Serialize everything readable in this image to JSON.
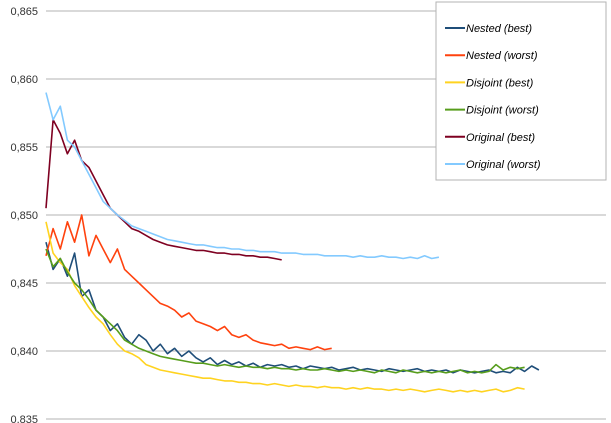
{
  "chart_data": {
    "type": "line",
    "title": "",
    "xlabel": "",
    "ylabel": "",
    "ylim": [
      0.835,
      0.865
    ],
    "yticks": [
      "0,835",
      "0,840",
      "0,845",
      "0,850",
      "0,855",
      "0,860",
      "0,865"
    ],
    "xlim": [
      0,
      280
    ],
    "grid": true,
    "legend_position": "top-right",
    "series": [
      {
        "name": "Nested (best)",
        "color": "#1f4e79",
        "x": [
          0,
          4,
          8,
          12,
          16,
          20,
          24,
          28,
          32,
          36,
          40,
          44,
          48,
          52,
          56,
          60,
          64,
          68,
          72,
          76,
          80,
          84,
          88,
          92,
          96,
          100,
          104,
          108,
          112,
          116,
          120,
          124,
          128,
          132,
          136,
          140,
          144,
          148,
          152,
          156,
          160,
          164,
          168,
          172,
          176,
          180,
          184,
          188,
          192,
          196,
          200,
          204,
          208,
          212,
          216,
          220,
          224,
          228,
          232,
          236,
          240,
          244,
          248,
          252,
          256,
          260,
          264,
          268,
          272,
          276
        ],
        "values": [
          0.848,
          0.846,
          0.8468,
          0.8455,
          0.8472,
          0.844,
          0.8445,
          0.843,
          0.8425,
          0.8415,
          0.842,
          0.841,
          0.8405,
          0.8412,
          0.8408,
          0.84,
          0.8405,
          0.8398,
          0.8402,
          0.8396,
          0.84,
          0.8395,
          0.8392,
          0.8395,
          0.839,
          0.8393,
          0.839,
          0.8392,
          0.8389,
          0.8391,
          0.8388,
          0.839,
          0.8389,
          0.839,
          0.8388,
          0.8389,
          0.8387,
          0.8389,
          0.8388,
          0.8387,
          0.8388,
          0.8386,
          0.8387,
          0.8388,
          0.8386,
          0.8387,
          0.8386,
          0.8385,
          0.8387,
          0.8386,
          0.8385,
          0.8386,
          0.8387,
          0.8385,
          0.8386,
          0.8385,
          0.8386,
          0.8384,
          0.8386,
          0.8385,
          0.8384,
          0.8385,
          0.8386,
          0.8384,
          0.8385,
          0.8384,
          0.8388,
          0.8385,
          0.8389,
          0.8386
        ]
      },
      {
        "name": "Nested (worst)",
        "color": "#ff420e",
        "x": [
          0,
          4,
          8,
          12,
          16,
          20,
          24,
          28,
          32,
          36,
          40,
          44,
          48,
          52,
          56,
          60,
          64,
          68,
          72,
          76,
          80,
          84,
          88,
          92,
          96,
          100,
          104,
          108,
          112,
          116,
          120,
          124,
          128,
          132,
          136,
          140,
          144,
          148,
          152,
          156,
          160
        ],
        "values": [
          0.847,
          0.849,
          0.8475,
          0.8495,
          0.848,
          0.85,
          0.847,
          0.8485,
          0.8475,
          0.8465,
          0.8475,
          0.846,
          0.8455,
          0.845,
          0.8445,
          0.844,
          0.8435,
          0.8433,
          0.843,
          0.8425,
          0.8428,
          0.8422,
          0.842,
          0.8418,
          0.8415,
          0.8418,
          0.8412,
          0.841,
          0.8412,
          0.8408,
          0.8406,
          0.8405,
          0.8404,
          0.8405,
          0.8402,
          0.8403,
          0.8402,
          0.8401,
          0.8403,
          0.8401,
          0.8402
        ]
      },
      {
        "name": "Disjoint (best)",
        "color": "#ffd320",
        "x": [
          0,
          4,
          8,
          12,
          16,
          20,
          24,
          28,
          32,
          36,
          40,
          44,
          48,
          52,
          56,
          60,
          64,
          68,
          72,
          76,
          80,
          84,
          88,
          92,
          96,
          100,
          104,
          108,
          112,
          116,
          120,
          124,
          128,
          132,
          136,
          140,
          144,
          148,
          152,
          156,
          160,
          164,
          168,
          172,
          176,
          180,
          184,
          188,
          192,
          196,
          200,
          204,
          208,
          212,
          216,
          220,
          224,
          228,
          232,
          236,
          240,
          244,
          248,
          252,
          256,
          260,
          264,
          268
        ],
        "values": [
          0.8495,
          0.8472,
          0.8465,
          0.846,
          0.8448,
          0.844,
          0.8432,
          0.8425,
          0.842,
          0.8412,
          0.8405,
          0.84,
          0.8398,
          0.8395,
          0.839,
          0.8388,
          0.8386,
          0.8385,
          0.8384,
          0.8383,
          0.8382,
          0.8381,
          0.838,
          0.838,
          0.8379,
          0.8378,
          0.8378,
          0.8377,
          0.8377,
          0.8376,
          0.8376,
          0.8375,
          0.8376,
          0.8375,
          0.8374,
          0.8375,
          0.8374,
          0.8374,
          0.8373,
          0.8374,
          0.8373,
          0.8373,
          0.8372,
          0.8373,
          0.8372,
          0.8373,
          0.8372,
          0.8372,
          0.8371,
          0.8372,
          0.8371,
          0.8372,
          0.8371,
          0.837,
          0.8371,
          0.8372,
          0.8371,
          0.837,
          0.8371,
          0.837,
          0.8371,
          0.837,
          0.8371,
          0.8372,
          0.837,
          0.8371,
          0.8373,
          0.8372
        ]
      },
      {
        "name": "Disjoint (worst)",
        "color": "#579d1c",
        "x": [
          0,
          4,
          8,
          12,
          16,
          20,
          24,
          28,
          32,
          36,
          40,
          44,
          48,
          52,
          56,
          60,
          64,
          68,
          72,
          76,
          80,
          84,
          88,
          92,
          96,
          100,
          104,
          108,
          112,
          116,
          120,
          124,
          128,
          132,
          136,
          140,
          144,
          148,
          152,
          156,
          160,
          164,
          168,
          172,
          176,
          180,
          184,
          188,
          192,
          196,
          200,
          204,
          208,
          212,
          216,
          220,
          224,
          228,
          232,
          236,
          240,
          244,
          248,
          252,
          256,
          260,
          264,
          268
        ],
        "values": [
          0.8475,
          0.8462,
          0.8468,
          0.8458,
          0.845,
          0.8445,
          0.8438,
          0.843,
          0.8425,
          0.842,
          0.8415,
          0.8408,
          0.8405,
          0.8402,
          0.84,
          0.8398,
          0.8396,
          0.8395,
          0.8394,
          0.8393,
          0.8392,
          0.8391,
          0.8391,
          0.839,
          0.8389,
          0.839,
          0.8389,
          0.8388,
          0.8389,
          0.8388,
          0.8388,
          0.8387,
          0.8388,
          0.8387,
          0.8387,
          0.8386,
          0.8387,
          0.8386,
          0.8386,
          0.8387,
          0.8386,
          0.8385,
          0.8386,
          0.8385,
          0.8386,
          0.8385,
          0.8384,
          0.8386,
          0.8385,
          0.8384,
          0.8386,
          0.8385,
          0.8384,
          0.8385,
          0.8384,
          0.8385,
          0.8384,
          0.8385,
          0.8386,
          0.8384,
          0.8385,
          0.8384,
          0.8385,
          0.839,
          0.8386,
          0.8388,
          0.8387,
          0.8388
        ]
      },
      {
        "name": "Original (best)",
        "color": "#7e0021",
        "x": [
          0,
          4,
          8,
          12,
          16,
          20,
          24,
          28,
          32,
          36,
          40,
          44,
          48,
          52,
          56,
          60,
          64,
          68,
          72,
          76,
          80,
          84,
          88,
          92,
          96,
          100,
          104,
          108,
          112,
          116,
          120,
          124,
          128,
          132
        ],
        "values": [
          0.8505,
          0.857,
          0.856,
          0.8545,
          0.8555,
          0.854,
          0.8535,
          0.8525,
          0.8515,
          0.8505,
          0.85,
          0.8495,
          0.849,
          0.8488,
          0.8485,
          0.8482,
          0.848,
          0.8478,
          0.8477,
          0.8476,
          0.8475,
          0.8474,
          0.8474,
          0.8473,
          0.8472,
          0.8472,
          0.8471,
          0.8471,
          0.847,
          0.847,
          0.8469,
          0.8469,
          0.8468,
          0.8467
        ]
      },
      {
        "name": "Original (worst)",
        "color": "#83caff",
        "x": [
          0,
          4,
          8,
          12,
          16,
          20,
          24,
          28,
          32,
          36,
          40,
          44,
          48,
          52,
          56,
          60,
          64,
          68,
          72,
          76,
          80,
          84,
          88,
          92,
          96,
          100,
          104,
          108,
          112,
          116,
          120,
          124,
          128,
          132,
          136,
          140,
          144,
          148,
          152,
          156,
          160,
          164,
          168,
          172,
          176,
          180,
          184,
          188,
          192,
          196,
          200,
          204,
          208,
          212,
          216,
          220
        ],
        "values": [
          0.859,
          0.857,
          0.858,
          0.8555,
          0.855,
          0.854,
          0.853,
          0.852,
          0.851,
          0.8505,
          0.85,
          0.8496,
          0.8492,
          0.849,
          0.8488,
          0.8486,
          0.8484,
          0.8482,
          0.8481,
          0.848,
          0.8479,
          0.8478,
          0.8478,
          0.8477,
          0.8476,
          0.8476,
          0.8475,
          0.8475,
          0.8474,
          0.8474,
          0.8473,
          0.8473,
          0.8473,
          0.8472,
          0.8472,
          0.8472,
          0.8471,
          0.8471,
          0.8471,
          0.847,
          0.847,
          0.847,
          0.847,
          0.8469,
          0.847,
          0.8469,
          0.8469,
          0.847,
          0.8469,
          0.8469,
          0.8468,
          0.8469,
          0.8468,
          0.847,
          0.8468,
          0.8469
        ]
      }
    ]
  }
}
